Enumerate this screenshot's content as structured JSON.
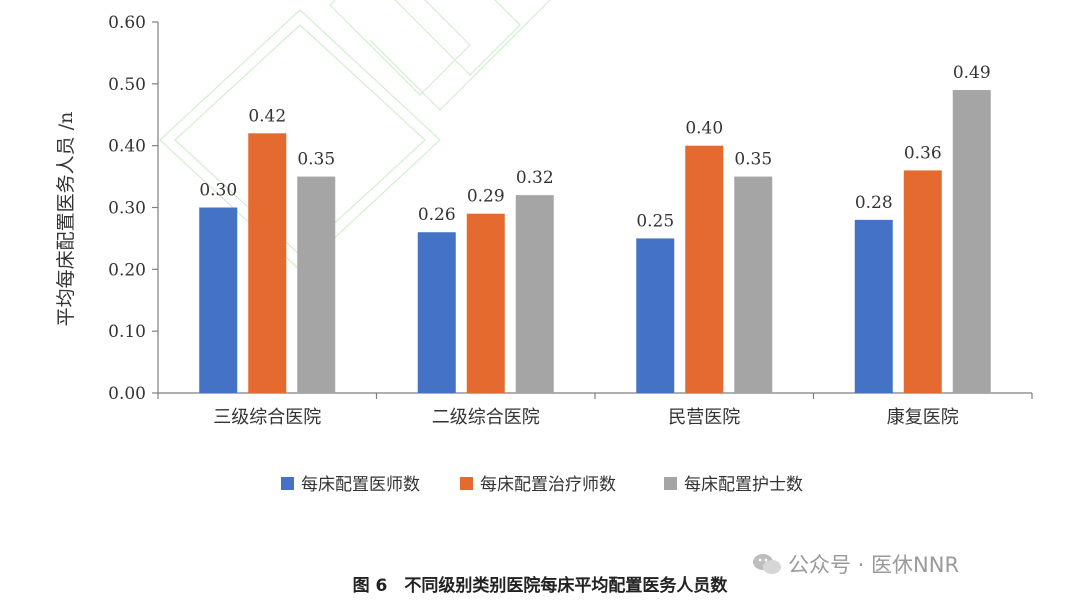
{
  "chart_data": {
    "type": "bar",
    "ylabel": "平均每床配置医务人员 /n",
    "ylim": [
      0,
      0.6
    ],
    "yticks": [
      "0.00",
      "0.10",
      "0.20",
      "0.30",
      "0.40",
      "0.50",
      "0.60"
    ],
    "categories": [
      "三级综合医院",
      "二级综合医院",
      "民营医院",
      "康复医院"
    ],
    "series": [
      {
        "name": "每床配置医师数",
        "color": "#4472c4",
        "values": [
          0.3,
          0.26,
          0.25,
          0.28
        ]
      },
      {
        "name": "每床配置治疗师数",
        "color": "#e46a2f",
        "values": [
          0.42,
          0.29,
          0.4,
          0.36
        ]
      },
      {
        "name": "每床配置护士数",
        "color": "#a5a5a5",
        "values": [
          0.35,
          0.32,
          0.35,
          0.49
        ]
      }
    ],
    "legend_position": "bottom",
    "grid": false
  },
  "caption": "图 6　不同级别类别医院每床平均配置医务人员数",
  "watermark": "公众号 · 医休NNR"
}
